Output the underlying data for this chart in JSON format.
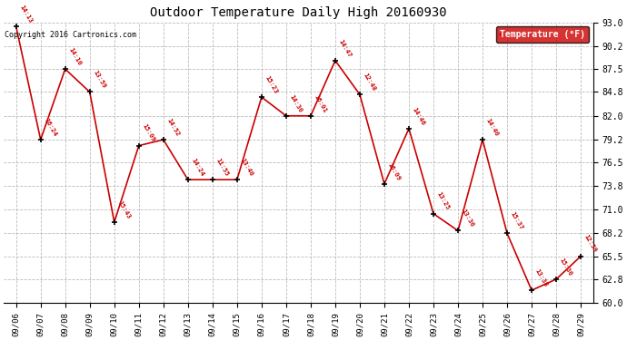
{
  "title": "Outdoor Temperature Daily High 20160930",
  "copyright": "Copyright 2016 Cartronics.com",
  "legend_label": "Temperature (°F)",
  "dates": [
    "09/06",
    "09/07",
    "09/08",
    "09/09",
    "09/10",
    "09/11",
    "09/12",
    "09/13",
    "09/14",
    "09/15",
    "09/16",
    "09/17",
    "09/18",
    "09/19",
    "09/20",
    "09/21",
    "09/22",
    "09/23",
    "09/24",
    "09/25",
    "09/26",
    "09/27",
    "09/28",
    "09/29"
  ],
  "temperatures": [
    92.5,
    79.2,
    87.5,
    84.8,
    69.5,
    78.5,
    79.2,
    74.5,
    74.5,
    74.5,
    84.2,
    82.0,
    82.0,
    88.5,
    84.5,
    74.0,
    80.5,
    70.5,
    68.5,
    79.2,
    68.2,
    61.5,
    62.8,
    65.5
  ],
  "times": [
    "14:13",
    "16:24",
    "14:10",
    "13:59",
    "15:43",
    "15:09",
    "14:52",
    "14:24",
    "11:55",
    "13:40",
    "15:23",
    "14:30",
    "16:01",
    "14:47",
    "12:48",
    "16:09",
    "14:46",
    "13:25",
    "13:30",
    "14:40",
    "15:37",
    "13:38",
    "15:30",
    "12:59"
  ],
  "line_color": "#cc0000",
  "marker_color": "#000000",
  "text_color": "#cc0000",
  "background_color": "#ffffff",
  "grid_color": "#bbbbbb",
  "legend_bg": "#cc0000",
  "legend_text": "#ffffff",
  "ylim": [
    60.0,
    93.0
  ],
  "yticks": [
    60.0,
    62.8,
    65.5,
    68.2,
    71.0,
    73.8,
    76.5,
    79.2,
    82.0,
    84.8,
    87.5,
    90.2,
    93.0
  ]
}
